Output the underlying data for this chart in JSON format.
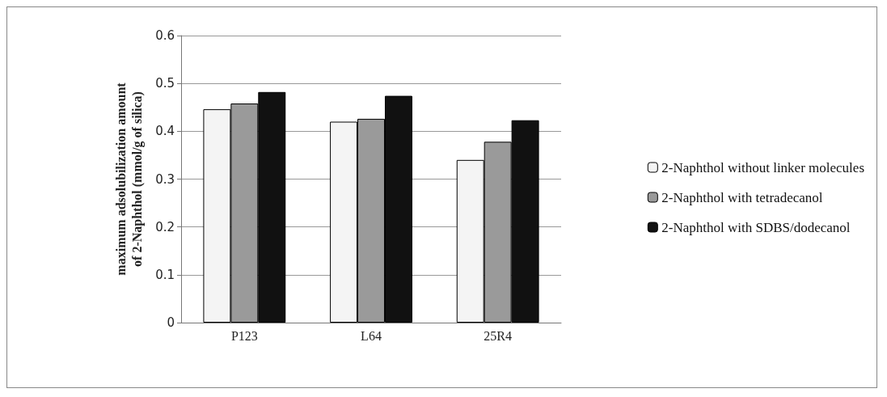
{
  "chart_data": {
    "type": "bar",
    "ylabel": "maximum adsolubilization amount\nof 2-Naphthol (mmol/g of silica)",
    "categories": [
      "P123",
      "L64",
      "25R4"
    ],
    "series": [
      {
        "name": "2-Naphthol without linker molecules",
        "color": "#f4f4f4",
        "values": [
          0.446,
          0.42,
          0.34
        ]
      },
      {
        "name": "2-Naphthol with tetradecanol",
        "color": "#9a9a9a",
        "values": [
          0.458,
          0.426,
          0.378
        ]
      },
      {
        "name": "2-Naphthol with SDBS/dodecanol",
        "color": "#111111",
        "values": [
          0.482,
          0.474,
          0.423
        ]
      }
    ],
    "ylim": [
      0,
      0.6
    ],
    "yticks": [
      0,
      0.1,
      0.2,
      0.3,
      0.4,
      0.5,
      0.6
    ],
    "grid": "y",
    "legend": "right"
  }
}
